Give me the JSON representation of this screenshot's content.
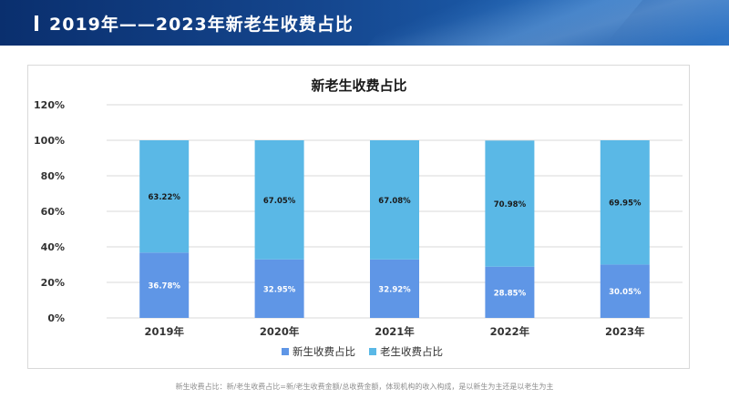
{
  "header": {
    "title": "2019年——2023年新老生收费占比"
  },
  "footnote": "新生收费占比：新/老生收费占比=新/老生收费金额/总收费金额，体现机构的收入构成，是以新生为主还是以老生为主",
  "colors": {
    "new": "#5f96e6",
    "old": "#5ab8e6",
    "grid": "#d9d9d9"
  },
  "chart_data": {
    "type": "bar",
    "stacked": true,
    "title": "新老生收费占比",
    "categories": [
      "2019年",
      "2020年",
      "2021年",
      "2022年",
      "2023年"
    ],
    "series": [
      {
        "name": "新生收费占比",
        "values": [
          36.78,
          32.95,
          32.92,
          28.85,
          30.05
        ],
        "labels": [
          "36.78%",
          "32.95%",
          "32.92%",
          "28.85%",
          "30.05%"
        ],
        "color": "#5f96e6"
      },
      {
        "name": "老生收费占比",
        "values": [
          63.22,
          67.05,
          67.08,
          70.98,
          69.95
        ],
        "labels": [
          "63.22%",
          "67.05%",
          "67.08%",
          "70.98%",
          "69.95%"
        ],
        "color": "#5ab8e6"
      }
    ],
    "yticks": [
      "0%",
      "20%",
      "40%",
      "60%",
      "80%",
      "100%",
      "120%"
    ],
    "ylim": [
      0,
      120
    ],
    "grid": true,
    "legend_position": "bottom",
    "xlabel": "",
    "ylabel": ""
  }
}
